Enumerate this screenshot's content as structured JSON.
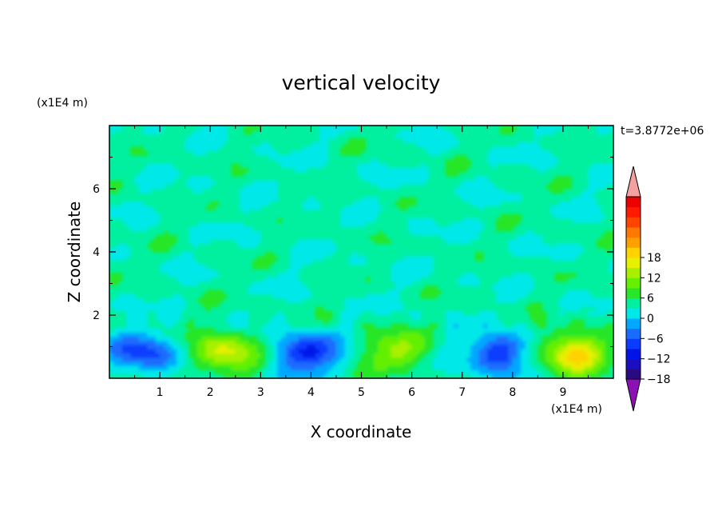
{
  "chart_data": {
    "type": "heatmap",
    "title": "vertical velocity",
    "xlabel": "X coordinate",
    "ylabel": "Z coordinate",
    "x_unit": "(x1E4 m)",
    "y_unit": "(x1E4 m)",
    "time_label": "t=3.8772e+06",
    "xlim": [
      0,
      10
    ],
    "ylim": [
      0,
      8
    ],
    "x_ticks": [
      1,
      2,
      3,
      4,
      5,
      6,
      7,
      8,
      9
    ],
    "y_ticks": [
      2,
      4,
      6
    ],
    "colorbar": {
      "min": -21,
      "max": 21,
      "step": 3,
      "tick_values": [
        18,
        12,
        6,
        0,
        -6,
        -12,
        -18
      ],
      "tick_labels": [
        "18",
        "12",
        "6",
        "0",
        "−6",
        "−12",
        "−18"
      ],
      "colors": [
        "#2a0a80",
        "#1a0ec0",
        "#0014e8",
        "#0a3cff",
        "#1a6cff",
        "#00a8ff",
        "#00e8e8",
        "#00f0a0",
        "#28e628",
        "#64f000",
        "#a8f000",
        "#e6f000",
        "#ffd200",
        "#ffa000",
        "#ff7800",
        "#ff4400",
        "#ff1a00",
        "#ec0000"
      ],
      "over_color": "#f4a0a0",
      "under_color": "#8c10b4"
    },
    "cells": [
      {
        "cx": 0.7,
        "cz": 0.8,
        "peak": -12
      },
      {
        "cx": 2.3,
        "cz": 0.8,
        "peak": 13
      },
      {
        "cx": 3.9,
        "cz": 0.8,
        "peak": -14
      },
      {
        "cx": 5.7,
        "cz": 0.85,
        "peak": 9
      },
      {
        "cx": 7.7,
        "cz": 0.8,
        "peak": -13
      },
      {
        "cx": 9.2,
        "cz": 0.8,
        "peak": 16
      }
    ]
  }
}
